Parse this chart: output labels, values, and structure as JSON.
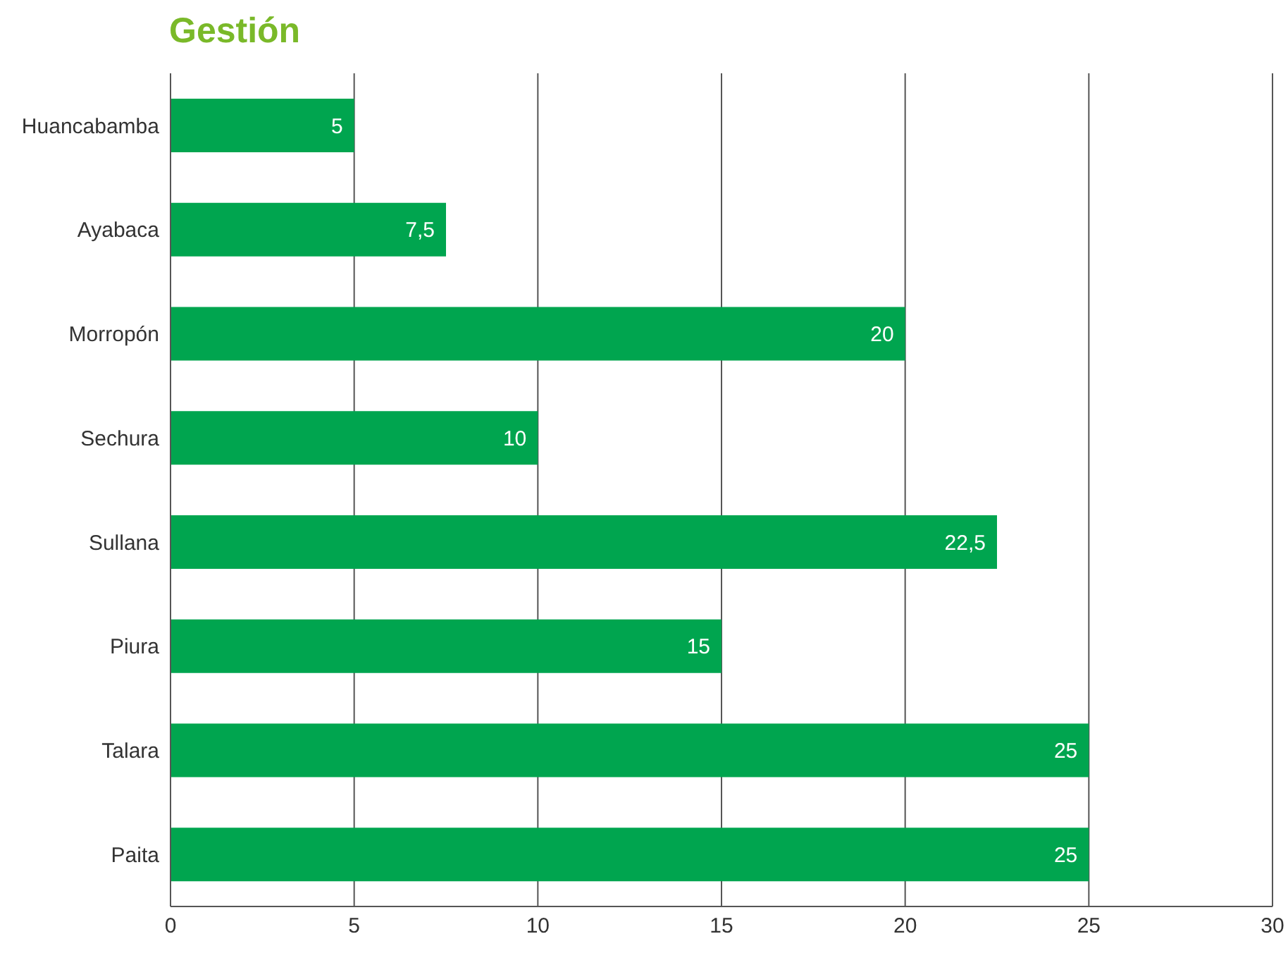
{
  "chart_data": {
    "type": "bar",
    "orientation": "horizontal",
    "title": "Gestión",
    "categories": [
      "Huancabamba",
      "Ayabaca",
      "Morropón",
      "Sechura",
      "Sullana",
      "Piura",
      "Talara",
      "Paita"
    ],
    "values": [
      5,
      7.5,
      20,
      10,
      22.5,
      15,
      25,
      25
    ],
    "value_labels": [
      "5",
      "7,5",
      "20",
      "10",
      "22,5",
      "15",
      "25",
      "25"
    ],
    "color": "#00a54f",
    "xlim": [
      0,
      30
    ],
    "xticks": [
      0,
      5,
      10,
      15,
      20,
      25,
      30
    ],
    "grid": "x"
  }
}
